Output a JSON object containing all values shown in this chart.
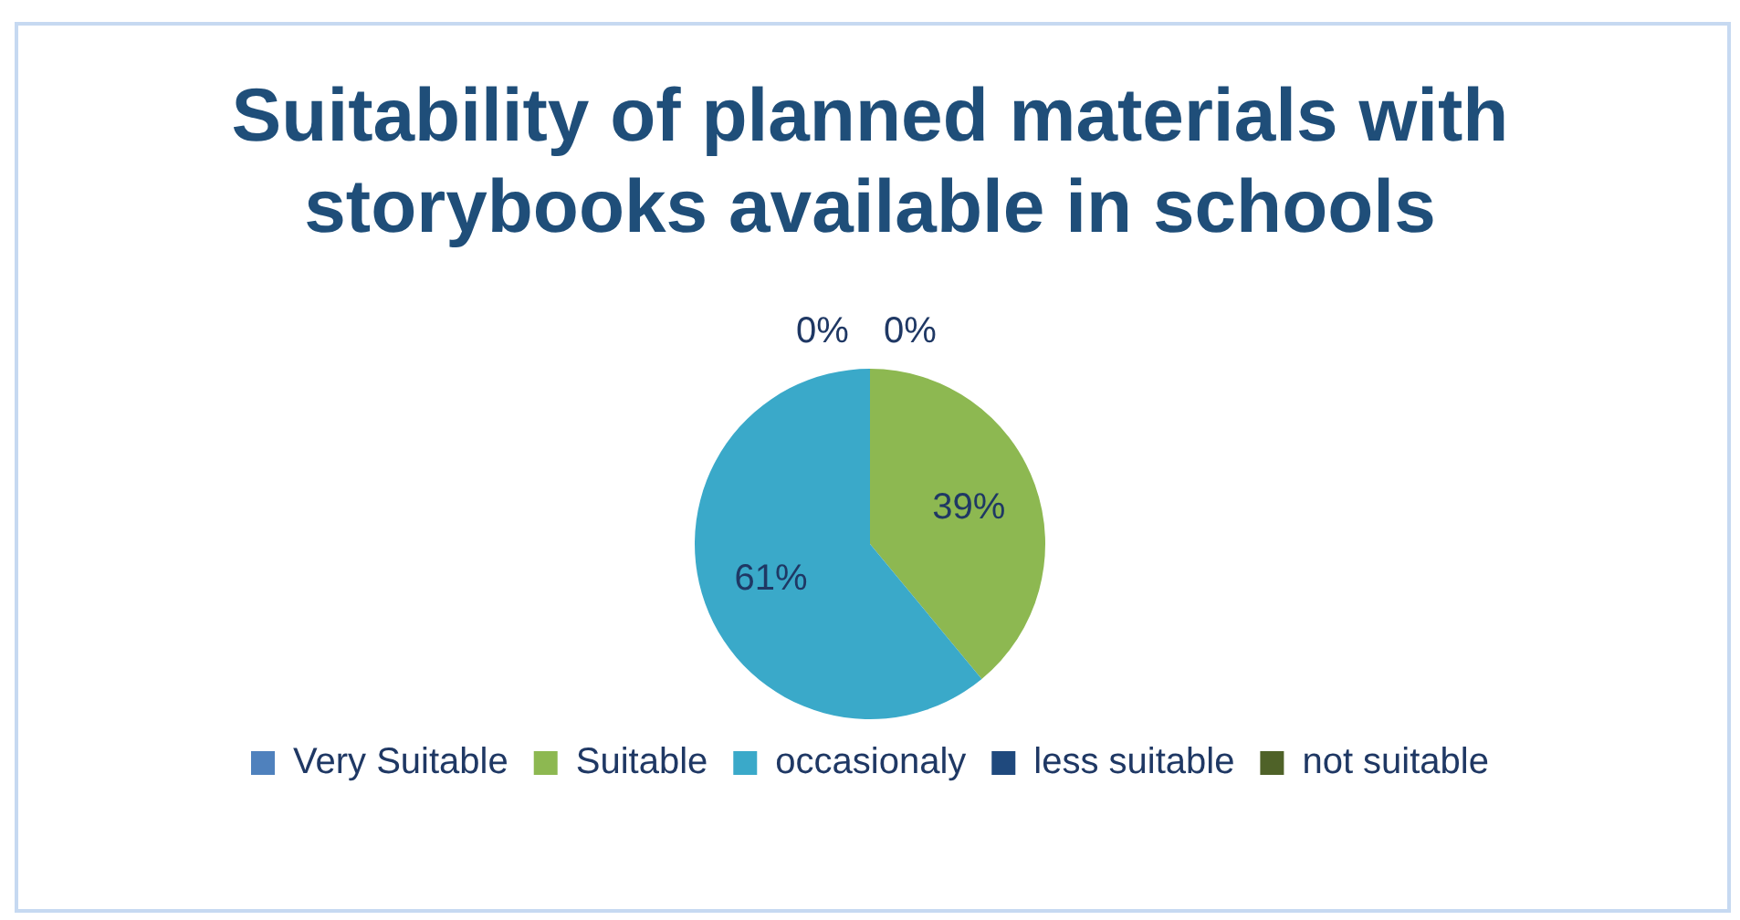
{
  "chart_data": {
    "type": "pie",
    "title": "Suitability of planned materials with storybooks available in schools",
    "categories": [
      "Very Suitable",
      "Suitable",
      "occasionaly",
      "less suitable",
      "not suitable"
    ],
    "values": [
      0,
      39,
      61,
      0,
      0
    ],
    "colors": [
      "#4f81bd",
      "#8db851",
      "#3aa9c9",
      "#1f497d",
      "#4f6228"
    ],
    "value_labels": [
      "0%",
      "39%",
      "61%",
      "0%",
      null
    ],
    "legend": "bottom"
  }
}
